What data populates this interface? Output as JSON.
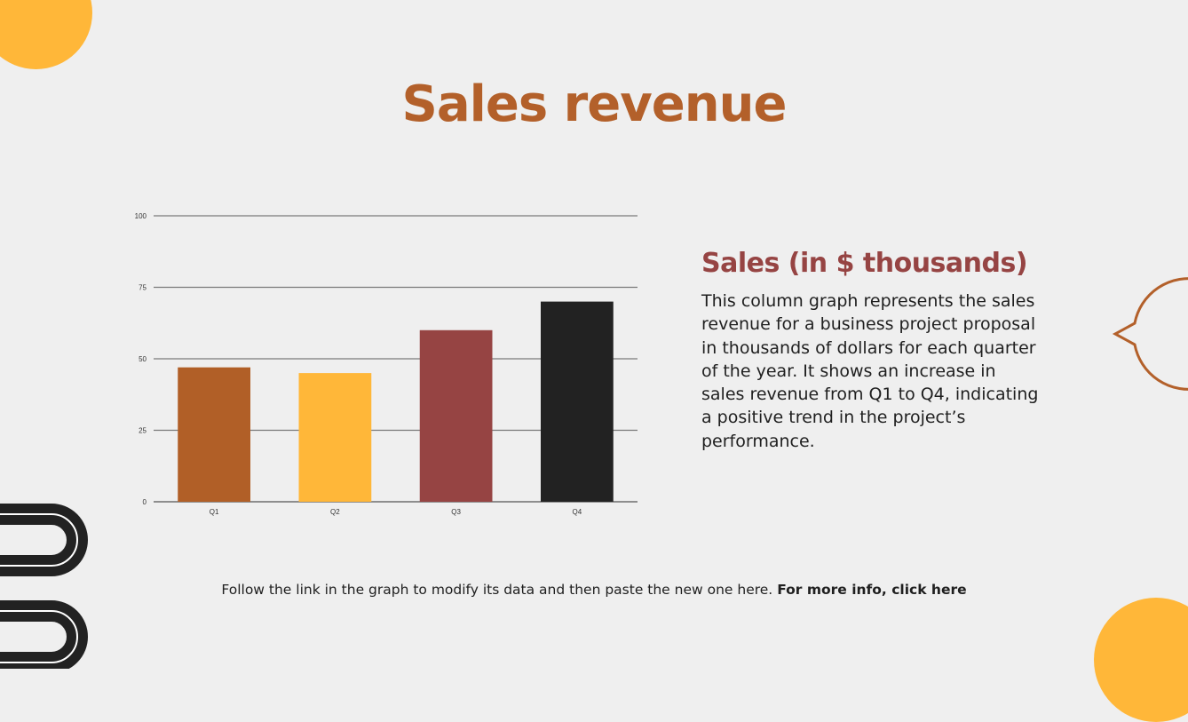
{
  "slide": {
    "title": "Sales revenue"
  },
  "side_panel": {
    "heading": "Sales (in $ thousands)",
    "body": "This column graph represents the sales revenue for a business project proposal in thousands of dollars for each quarter of the year. It shows an increase in sales revenue from Q1 to Q4, indicating a positive trend in the project’s performance."
  },
  "footer": {
    "text": "Follow the link in the graph to modify its data and then paste the new one here.",
    "link_label": "For more info, click here"
  },
  "colors": {
    "background": "#efefef",
    "title": "#b3602a",
    "heading": "#964443",
    "accent_yellow": "#ffb739"
  },
  "chart_data": {
    "type": "bar",
    "categories": [
      "Q1",
      "Q2",
      "Q3",
      "Q4"
    ],
    "values": [
      47,
      45,
      60,
      70
    ],
    "bar_colors": [
      "#b15f27",
      "#ffb739",
      "#964443",
      "#222222"
    ],
    "ylim": [
      0,
      100
    ],
    "yticks": [
      0,
      25,
      50,
      75,
      100
    ],
    "grid": true,
    "title": "",
    "xlabel": "",
    "ylabel": ""
  }
}
